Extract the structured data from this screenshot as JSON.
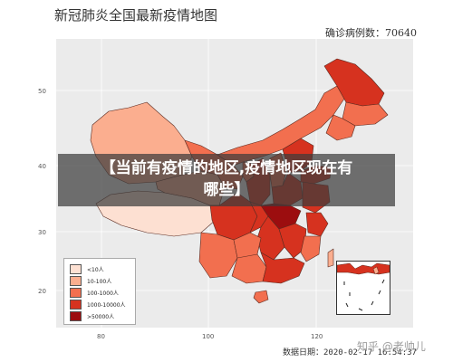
{
  "title": "新冠肺炎全国最新疫情地图",
  "confirmed_text": "确诊病例数：70640",
  "banner_line1": "【当前有疫情的地区,疫情地区现在有",
  "banner_line2": "哪些】",
  "footer_text": "数据日期：2020-02-17 16:54:37",
  "watermark": "知乎 @老帅儿",
  "axis": {
    "y_ticks": [
      {
        "label": "50"
      },
      {
        "label": "40"
      },
      {
        "label": "30"
      },
      {
        "label": "20"
      }
    ],
    "x_ticks": [
      {
        "label": "80"
      },
      {
        "label": "100"
      },
      {
        "label": "120"
      }
    ]
  },
  "legend": {
    "items": [
      {
        "label": "<10人",
        "color": "#fde0d2"
      },
      {
        "label": "10-100人",
        "color": "#fbae8f"
      },
      {
        "label": "100-1000人",
        "color": "#f26f4f"
      },
      {
        "label": "1000-10000人",
        "color": "#d6321f"
      },
      {
        "label": ">50000人",
        "color": "#9c0d0f"
      }
    ]
  },
  "colors": {
    "plot_bg": "#ebebeb",
    "lt10": "#fde0d2",
    "c10_100": "#fbae8f",
    "c100_1000": "#f26f4f",
    "c1000_10000": "#d6321f",
    "gt50000": "#9c0d0f"
  }
}
